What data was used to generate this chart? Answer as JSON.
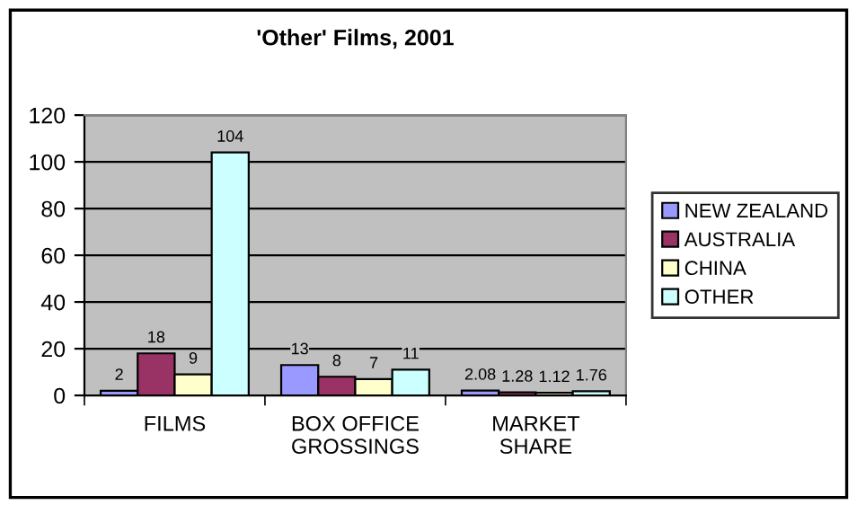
{
  "chart_data": {
    "type": "bar",
    "title": "'Other' Films, 2001",
    "categories": [
      "FILMS",
      "BOX OFFICE\nGROSSINGS",
      "MARKET\nSHARE"
    ],
    "series": [
      {
        "name": "NEW ZEALAND",
        "color": "#9999ff",
        "values": [
          2,
          13,
          2.08
        ]
      },
      {
        "name": "AUSTRALIA",
        "color": "#993366",
        "values": [
          18,
          8,
          1.28
        ]
      },
      {
        "name": "CHINA",
        "color": "#ffffcc",
        "values": [
          9,
          7,
          1.12
        ]
      },
      {
        "name": "OTHER",
        "color": "#ccffff",
        "values": [
          104,
          11,
          1.76
        ]
      }
    ],
    "ylim": [
      0,
      120
    ],
    "yticks": [
      0,
      20,
      40,
      60,
      80,
      100,
      120
    ],
    "grid": "y",
    "legend": "right",
    "data_labels": true
  }
}
